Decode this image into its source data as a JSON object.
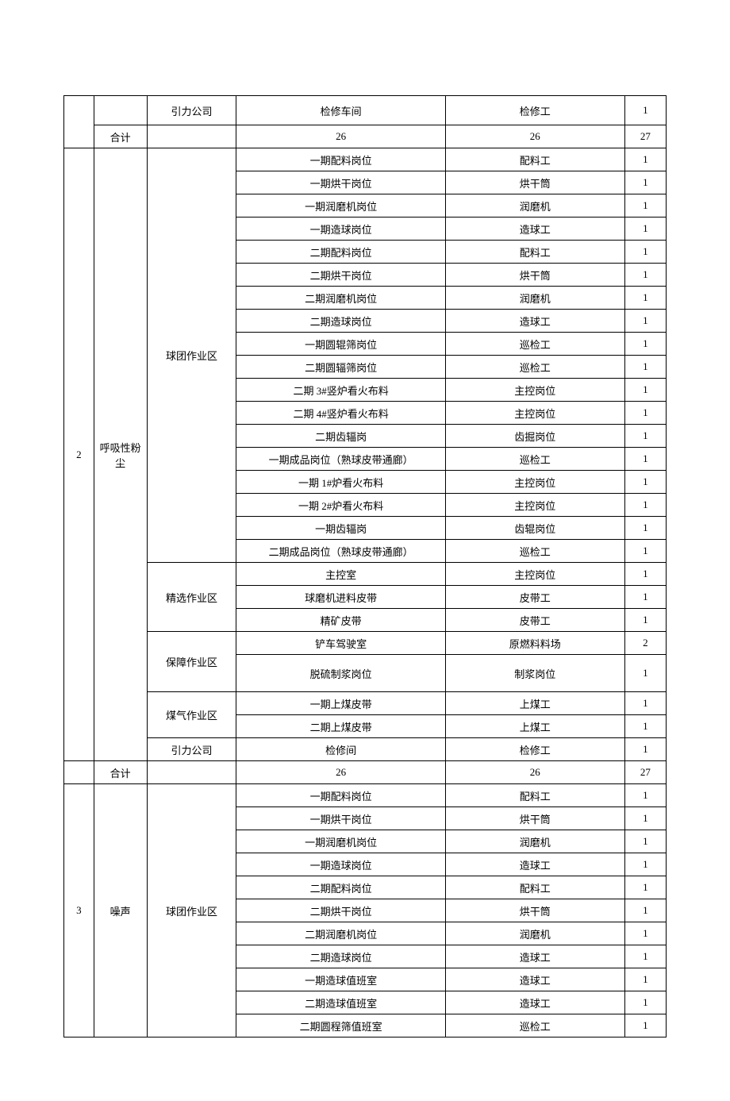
{
  "rows": [
    {
      "index": "",
      "category": "",
      "area": "引力公司",
      "position": "检修车间",
      "job": "检修工",
      "count": "1"
    },
    {
      "index": "",
      "category": "合计",
      "area": "",
      "position": "26",
      "job": "26",
      "count": "27"
    },
    {
      "index": "2",
      "category": "呼吸性粉尘",
      "area": "球团作业区",
      "position": "一期配料岗位",
      "job": "配料工",
      "count": "1"
    },
    {
      "position": "一期烘干岗位",
      "job": "烘干筒",
      "count": "1"
    },
    {
      "position": "一期润磨机岗位",
      "job": "润磨机",
      "count": "1"
    },
    {
      "position": "一期造球岗位",
      "job": "造球工",
      "count": "1"
    },
    {
      "position": "二期配料岗位",
      "job": "配料工",
      "count": "1"
    },
    {
      "position": "二期烘干岗位",
      "job": "烘干筒",
      "count": "1"
    },
    {
      "position": "二期润磨机岗位",
      "job": "润磨机",
      "count": "1"
    },
    {
      "position": "二期造球岗位",
      "job": "造球工",
      "count": "1"
    },
    {
      "position": "一期圆辊筛岗位",
      "job": "巡检工",
      "count": "1"
    },
    {
      "position": "二期圆辐筛岗位",
      "job": "巡检工",
      "count": "1"
    },
    {
      "position": "二期 3#竖炉看火布料",
      "job": "主控岗位",
      "count": "1"
    },
    {
      "position": "二期 4#竖炉看火布料",
      "job": "主控岗位",
      "count": "1"
    },
    {
      "position": "二期齿辐岗",
      "job": "齿掘岗位",
      "count": "1"
    },
    {
      "position": "一期成品岗位（熟球皮带通廊）",
      "job": "巡检工",
      "count": "1"
    },
    {
      "position": "一期 1#炉看火布料",
      "job": "主控岗位",
      "count": "1"
    },
    {
      "position": "一期 2#炉看火布料",
      "job": "主控岗位",
      "count": "1"
    },
    {
      "position": "一期齿辐岗",
      "job": "齿辊岗位",
      "count": "1"
    },
    {
      "position": "二期成品岗位（熟球皮带通廊）",
      "job": "巡检工",
      "count": "1"
    },
    {
      "area": "精选作业区",
      "position": "主控室",
      "job": "主控岗位",
      "count": "1"
    },
    {
      "position": "球磨机进料皮带",
      "job": "皮带工",
      "count": "1"
    },
    {
      "position": "精矿皮带",
      "job": "皮带工",
      "count": "1"
    },
    {
      "area": "保障作业区",
      "position": "铲车驾驶室",
      "job": "原燃料料场",
      "count": "2"
    },
    {
      "position": "脱硫制浆岗位",
      "job": "制浆岗位",
      "count": "1"
    },
    {
      "area": "煤气作业区",
      "position": "一期上煤皮带",
      "job": "上煤工",
      "count": "1"
    },
    {
      "position": "二期上煤皮带",
      "job": "上煤工",
      "count": "1"
    },
    {
      "area": "引力公司",
      "position": "检修间",
      "job": "检修工",
      "count": "1"
    },
    {
      "index": "",
      "category": "合计",
      "area": "",
      "position": "26",
      "job": "26",
      "count": "27"
    },
    {
      "index": "3",
      "category": "噪声",
      "area": "球团作业区",
      "position": "一期配料岗位",
      "job": "配料工",
      "count": "1"
    },
    {
      "position": "一期烘干岗位",
      "job": "烘干筒",
      "count": "1"
    },
    {
      "position": "一期润磨机岗位",
      "job": "润磨机",
      "count": "1"
    },
    {
      "position": "一期造球岗位",
      "job": "造球工",
      "count": "1"
    },
    {
      "position": "二期配料岗位",
      "job": "配料工",
      "count": "1"
    },
    {
      "position": "二期烘干岗位",
      "job": "烘干筒",
      "count": "1"
    },
    {
      "position": "二期润磨机岗位",
      "job": "润磨机",
      "count": "1"
    },
    {
      "position": "二期造球岗位",
      "job": "造球工",
      "count": "1"
    },
    {
      "position": "一期造球值班室",
      "job": "造球工",
      "count": "1"
    },
    {
      "position": "二期造球值班室",
      "job": "造球工",
      "count": "1"
    },
    {
      "position": "二期圆程筛值班室",
      "job": "巡检工",
      "count": "1"
    }
  ]
}
